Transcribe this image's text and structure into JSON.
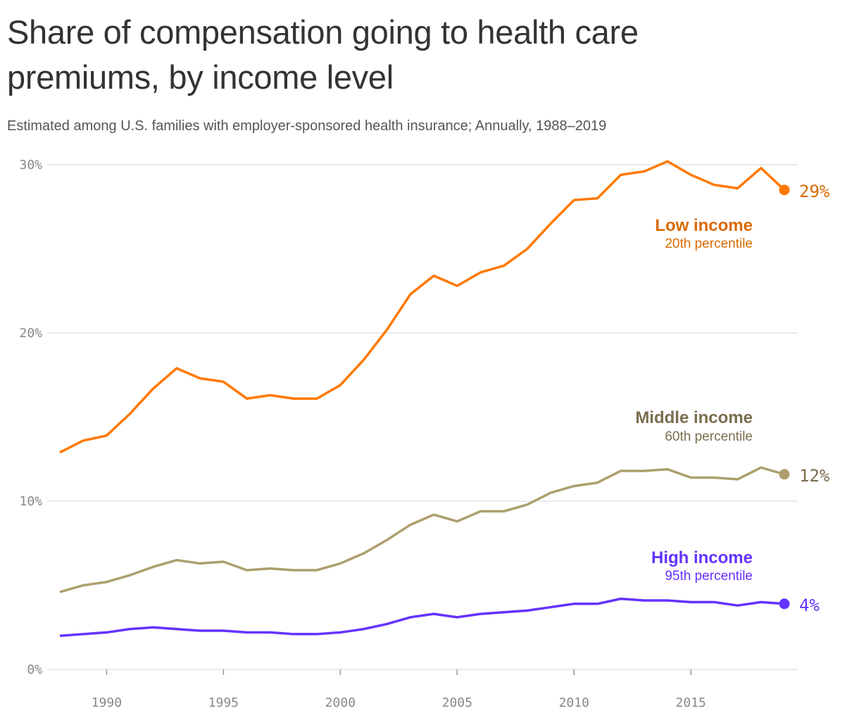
{
  "chart_data": {
    "type": "line",
    "title": "Share of compensation going to health care premiums, by income level",
    "subtitle": "Estimated among U.S. families with employer-sponsored health insurance; Annually, 1988–2019",
    "x": [
      1988,
      1989,
      1990,
      1991,
      1992,
      1993,
      1994,
      1995,
      1996,
      1997,
      1998,
      1999,
      2000,
      2001,
      2002,
      2003,
      2004,
      2005,
      2006,
      2007,
      2008,
      2009,
      2010,
      2011,
      2012,
      2013,
      2014,
      2015,
      2016,
      2017,
      2018,
      2019
    ],
    "xlim": [
      1988,
      2019
    ],
    "ylim": [
      0,
      30
    ],
    "x_ticks": [
      1990,
      1995,
      2000,
      2005,
      2010,
      2015
    ],
    "x_tick_labels": [
      "1990",
      "1995",
      "2000",
      "2005",
      "2010",
      "2015"
    ],
    "y_ticks": [
      0,
      10,
      20,
      30
    ],
    "y_tick_labels": [
      "0%",
      "10%",
      "20%",
      "30%"
    ],
    "grid": "horizontal",
    "series": [
      {
        "name": "Low income",
        "sublabel": "20th percentile",
        "end_label": "29%",
        "color": "#ff7900",
        "label_color": "#d96a00",
        "values": [
          12.9,
          13.6,
          13.9,
          15.2,
          16.7,
          17.9,
          17.3,
          17.1,
          16.1,
          16.3,
          16.1,
          16.1,
          16.9,
          18.4,
          20.2,
          22.3,
          23.4,
          22.8,
          23.6,
          24.0,
          25.0,
          26.5,
          27.9,
          28.0,
          29.4,
          29.6,
          30.2,
          29.4,
          28.8,
          28.6,
          29.8,
          28.5
        ]
      },
      {
        "name": "Middle income",
        "sublabel": "60th percentile",
        "end_label": "12%",
        "color": "#ad9f6d",
        "label_color": "#7a6e4e",
        "values": [
          4.6,
          5.0,
          5.2,
          5.6,
          6.1,
          6.5,
          6.3,
          6.4,
          5.9,
          6.0,
          5.9,
          5.9,
          6.3,
          6.9,
          7.7,
          8.6,
          9.2,
          8.8,
          9.4,
          9.4,
          9.8,
          10.5,
          10.9,
          11.1,
          11.8,
          11.8,
          11.9,
          11.4,
          11.4,
          11.3,
          12.0,
          11.6
        ]
      },
      {
        "name": "High income",
        "sublabel": "95th percentile",
        "end_label": "4%",
        "color": "#6533ff",
        "label_color": "#6533ff",
        "values": [
          2.0,
          2.1,
          2.2,
          2.4,
          2.5,
          2.4,
          2.3,
          2.3,
          2.2,
          2.2,
          2.1,
          2.1,
          2.2,
          2.4,
          2.7,
          3.1,
          3.3,
          3.1,
          3.3,
          3.4,
          3.5,
          3.7,
          3.9,
          3.9,
          4.2,
          4.1,
          4.1,
          4.0,
          4.0,
          3.8,
          4.0,
          3.9
        ]
      }
    ]
  }
}
